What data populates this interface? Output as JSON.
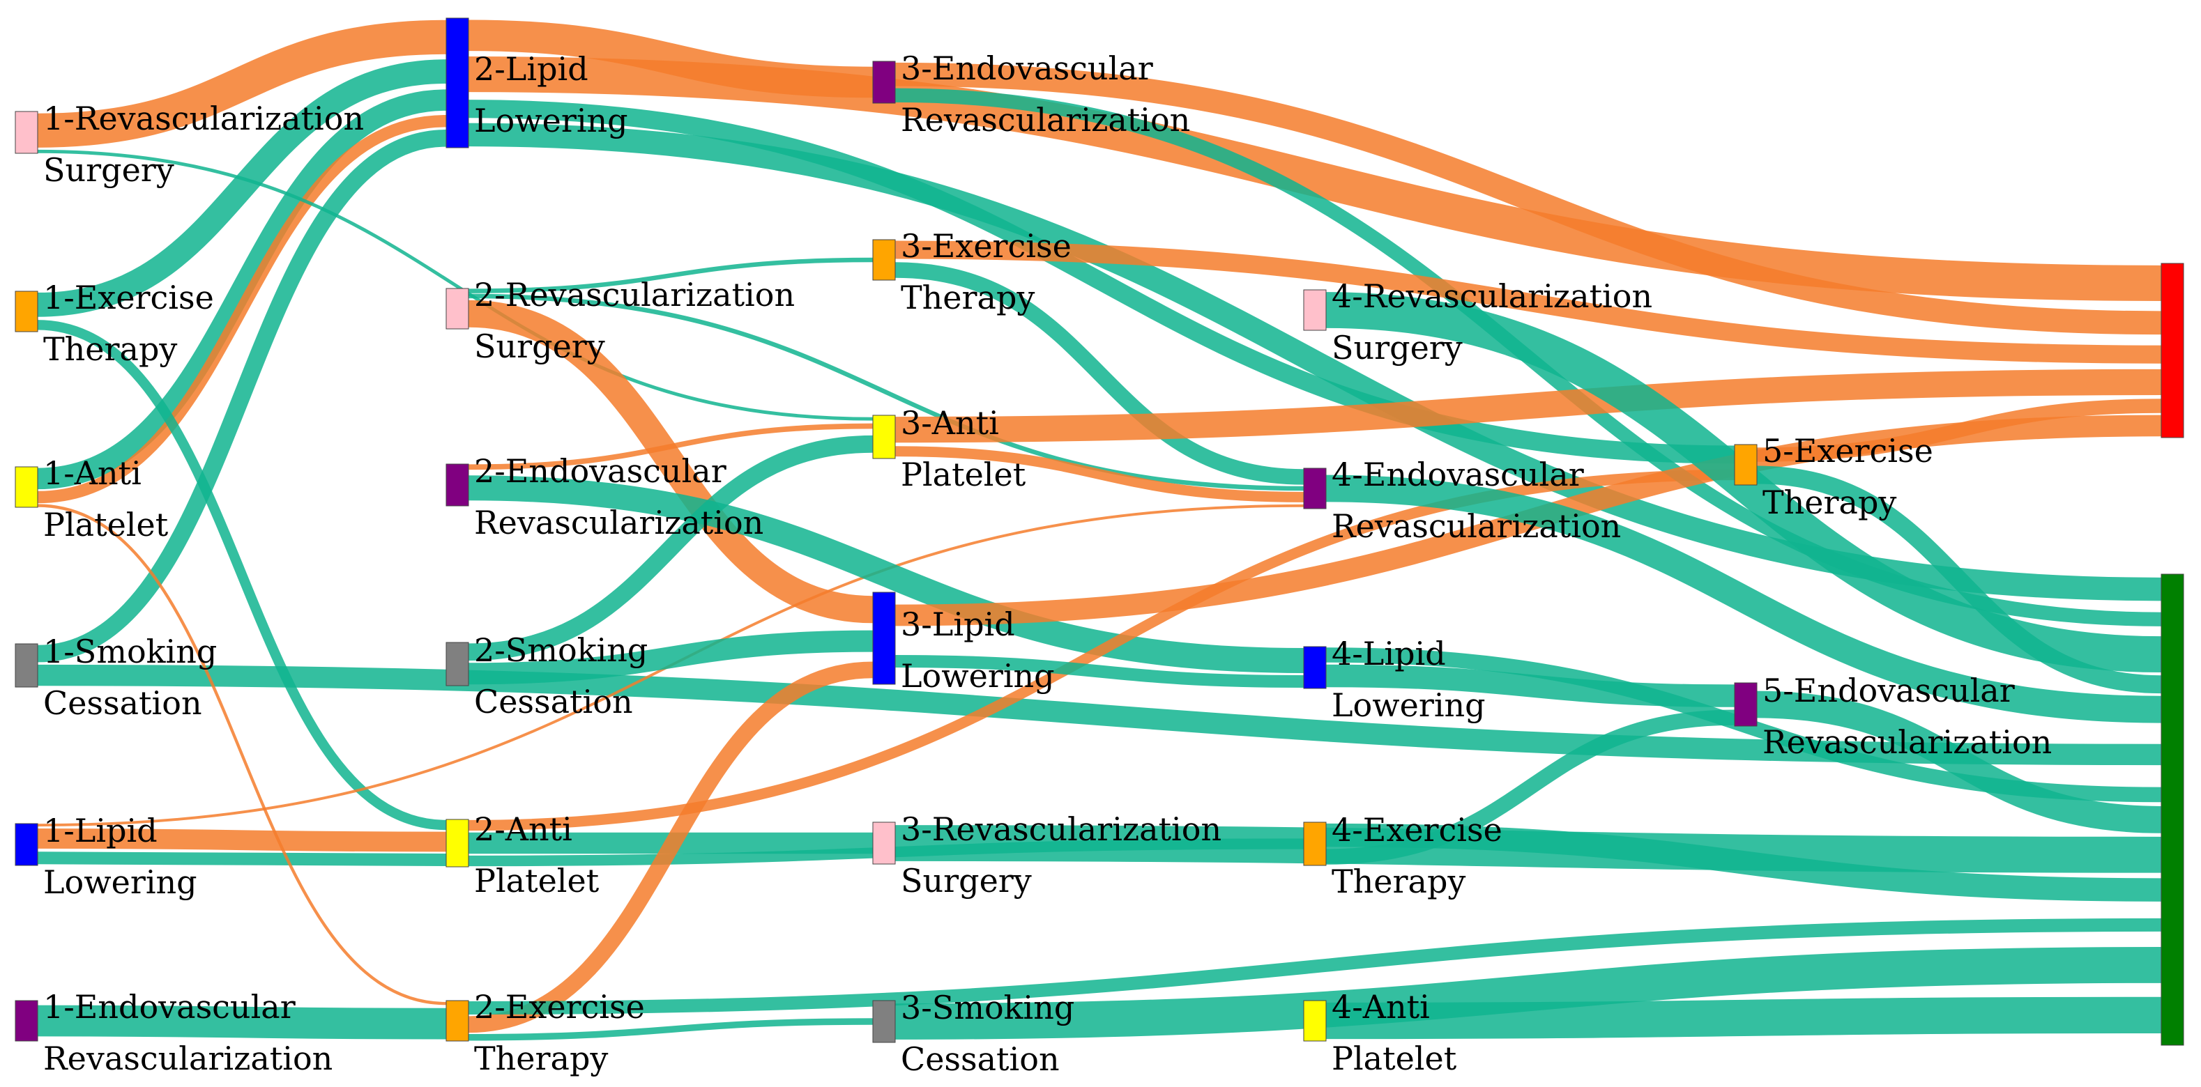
{
  "diagram": {
    "type": "sankey",
    "colors": {
      "Revascularization Surgery": "#ffc0cb",
      "Exercise Therapy": "#ffa500",
      "Anti Platelet": "#ffff00",
      "Smoking Cessation": "#808080",
      "Lipid Lowering": "#0000ff",
      "Endovascular Revascularization": "#800080",
      "outcome_red": "#ff0000",
      "outcome_green": "#008000",
      "link_orange": "#f47c2c",
      "link_teal": "#11b48f"
    },
    "nodes": [
      {
        "id": "s1_rs",
        "stage": 1,
        "line1": "1-Revascularization",
        "line2": "Surgery",
        "color": "Revascularization Surgery"
      },
      {
        "id": "s1_et",
        "stage": 1,
        "line1": "1-Exercise",
        "line2": "Therapy",
        "color": "Exercise Therapy"
      },
      {
        "id": "s1_ap",
        "stage": 1,
        "line1": "1-Anti",
        "line2": "Platelet",
        "color": "Anti Platelet"
      },
      {
        "id": "s1_sc",
        "stage": 1,
        "line1": "1-Smoking",
        "line2": "Cessation",
        "color": "Smoking Cessation"
      },
      {
        "id": "s1_ll",
        "stage": 1,
        "line1": "1-Lipid",
        "line2": "Lowering",
        "color": "Lipid Lowering"
      },
      {
        "id": "s1_ev",
        "stage": 1,
        "line1": "1-Endovascular",
        "line2": "Revascularization",
        "color": "Endovascular Revascularization"
      },
      {
        "id": "s2_ll",
        "stage": 2,
        "line1": "2-Lipid",
        "line2": "Lowering",
        "color": "Lipid Lowering"
      },
      {
        "id": "s2_rs",
        "stage": 2,
        "line1": "2-Revascularization",
        "line2": "Surgery",
        "color": "Revascularization Surgery"
      },
      {
        "id": "s2_ev",
        "stage": 2,
        "line1": "2-Endovascular",
        "line2": "Revascularization",
        "color": "Endovascular Revascularization"
      },
      {
        "id": "s2_sc",
        "stage": 2,
        "line1": "2-Smoking",
        "line2": "Cessation",
        "color": "Smoking Cessation"
      },
      {
        "id": "s2_ap",
        "stage": 2,
        "line1": "2-Anti",
        "line2": "Platelet",
        "color": "Anti Platelet"
      },
      {
        "id": "s2_et",
        "stage": 2,
        "line1": "2-Exercise",
        "line2": "Therapy",
        "color": "Exercise Therapy"
      },
      {
        "id": "s3_ev",
        "stage": 3,
        "line1": "3-Endovascular",
        "line2": "Revascularization",
        "color": "Endovascular Revascularization"
      },
      {
        "id": "s3_et",
        "stage": 3,
        "line1": "3-Exercise",
        "line2": "Therapy",
        "color": "Exercise Therapy"
      },
      {
        "id": "s3_ap",
        "stage": 3,
        "line1": "3-Anti",
        "line2": "Platelet",
        "color": "Anti Platelet"
      },
      {
        "id": "s3_ll",
        "stage": 3,
        "line1": "3-Lipid",
        "line2": "Lowering",
        "color": "Lipid Lowering"
      },
      {
        "id": "s3_rs",
        "stage": 3,
        "line1": "3-Revascularization",
        "line2": "Surgery",
        "color": "Revascularization Surgery"
      },
      {
        "id": "s3_sc",
        "stage": 3,
        "line1": "3-Smoking",
        "line2": "Cessation",
        "color": "Smoking Cessation"
      },
      {
        "id": "s4_rs",
        "stage": 4,
        "line1": "4-Revascularization",
        "line2": "Surgery",
        "color": "Revascularization Surgery"
      },
      {
        "id": "s4_ev",
        "stage": 4,
        "line1": "4-Endovascular",
        "line2": "Revascularization",
        "color": "Endovascular Revascularization"
      },
      {
        "id": "s4_ll",
        "stage": 4,
        "line1": "4-Lipid",
        "line2": "Lowering",
        "color": "Lipid Lowering"
      },
      {
        "id": "s4_et",
        "stage": 4,
        "line1": "4-Exercise",
        "line2": "Therapy",
        "color": "Exercise Therapy"
      },
      {
        "id": "s4_ap",
        "stage": 4,
        "line1": "4-Anti",
        "line2": "Platelet",
        "color": "Anti Platelet"
      },
      {
        "id": "s5_et",
        "stage": 5,
        "line1": "5-Exercise",
        "line2": "Therapy",
        "color": "Exercise Therapy"
      },
      {
        "id": "s5_ev",
        "stage": 5,
        "line1": "5-Endovascular",
        "line2": "Revascularization",
        "color": "Endovascular Revascularization"
      },
      {
        "id": "out_red",
        "stage": 6,
        "line1": "",
        "line2": "",
        "color": "outcome_red"
      },
      {
        "id": "out_green",
        "stage": 6,
        "line1": "",
        "line2": "",
        "color": "outcome_green"
      }
    ],
    "links": [
      {
        "source": "s1_rs",
        "target": "s2_ll",
        "value": 10,
        "kind": "orange"
      },
      {
        "source": "s1_et",
        "target": "s2_ll",
        "value": 8,
        "kind": "teal"
      },
      {
        "source": "s1_ap",
        "target": "s2_ll",
        "value": 7,
        "kind": "teal"
      },
      {
        "source": "s1_ap",
        "target": "s2_ll",
        "value": 4,
        "kind": "orange"
      },
      {
        "source": "s1_sc",
        "target": "s2_ll",
        "value": 5,
        "kind": "teal"
      },
      {
        "source": "s1_sc",
        "target": "out_green",
        "value": 6,
        "kind": "teal"
      },
      {
        "source": "s1_ll",
        "target": "s2_ap",
        "value": 8,
        "kind": "orange"
      },
      {
        "source": "s1_ll",
        "target": "s2_ap",
        "value": 5,
        "kind": "teal"
      },
      {
        "source": "s1_ev",
        "target": "s2_et",
        "value": 6,
        "kind": "teal"
      },
      {
        "source": "s1_et",
        "target": "s2_ap",
        "value": 4,
        "kind": "teal"
      },
      {
        "source": "s1_ap",
        "target": "s2_et",
        "value": 1,
        "kind": "orange"
      },
      {
        "source": "s1_rs",
        "target": "s3_ap",
        "value": 1,
        "kind": "teal"
      },
      {
        "source": "s1_ll",
        "target": "s4_ev",
        "value": 1,
        "kind": "orange"
      },
      {
        "source": "s2_ll",
        "target": "s3_ev",
        "value": 4,
        "kind": "orange"
      },
      {
        "source": "s2_ll",
        "target": "out_red",
        "value": 5,
        "kind": "orange"
      },
      {
        "source": "s2_ll",
        "target": "out_green",
        "value": 3,
        "kind": "teal"
      },
      {
        "source": "s2_ll",
        "target": "s5_et",
        "value": 3,
        "kind": "teal"
      },
      {
        "source": "s2_rs",
        "target": "s3_ll",
        "value": 6,
        "kind": "orange"
      },
      {
        "source": "s2_rs",
        "target": "s3_et",
        "value": 1,
        "kind": "teal"
      },
      {
        "source": "s2_rs",
        "target": "s4_ev",
        "value": 1,
        "kind": "teal"
      },
      {
        "source": "s2_ev",
        "target": "s4_ll",
        "value": 6,
        "kind": "teal"
      },
      {
        "source": "s2_ev",
        "target": "s3_ap",
        "value": 1,
        "kind": "orange"
      },
      {
        "source": "s2_sc",
        "target": "s3_ll",
        "value": 5,
        "kind": "teal"
      },
      {
        "source": "s2_sc",
        "target": "s3_ap",
        "value": 4,
        "kind": "teal"
      },
      {
        "source": "s2_ap",
        "target": "s3_rs",
        "value": 6,
        "kind": "teal"
      },
      {
        "source": "s2_ap",
        "target": "s5_et",
        "value": 3,
        "kind": "orange"
      },
      {
        "source": "s2_ap",
        "target": "s4_et",
        "value": 3,
        "kind": "teal"
      },
      {
        "source": "s2_et",
        "target": "s3_ll",
        "value": 5,
        "kind": "orange"
      },
      {
        "source": "s2_et",
        "target": "s3_sc",
        "value": 2,
        "kind": "teal"
      },
      {
        "source": "s2_et",
        "target": "out_green",
        "value": 4,
        "kind": "teal"
      },
      {
        "source": "s3_ev",
        "target": "out_red",
        "value": 5,
        "kind": "orange"
      },
      {
        "source": "s3_ev",
        "target": "out_green",
        "value": 3,
        "kind": "teal"
      },
      {
        "source": "s3_et",
        "target": "out_red",
        "value": 3,
        "kind": "orange"
      },
      {
        "source": "s3_et",
        "target": "s4_ev",
        "value": 3,
        "kind": "teal"
      },
      {
        "source": "s3_ap",
        "target": "out_red",
        "value": 4,
        "kind": "orange"
      },
      {
        "source": "s3_ap",
        "target": "s4_ev",
        "value": 2,
        "kind": "orange"
      },
      {
        "source": "s3_ll",
        "target": "out_red",
        "value": 3,
        "kind": "orange"
      },
      {
        "source": "s3_ll",
        "target": "s4_ll",
        "value": 3,
        "kind": "teal"
      },
      {
        "source": "s3_rs",
        "target": "out_green",
        "value": 4,
        "kind": "teal"
      },
      {
        "source": "s3_sc",
        "target": "out_green",
        "value": 4,
        "kind": "teal"
      },
      {
        "source": "s4_rs",
        "target": "out_green",
        "value": 4,
        "kind": "teal"
      },
      {
        "source": "s4_ev",
        "target": "out_green",
        "value": 3,
        "kind": "teal"
      },
      {
        "source": "s4_ll",
        "target": "s5_ev",
        "value": 3,
        "kind": "teal"
      },
      {
        "source": "s4_ll",
        "target": "out_green",
        "value": 2,
        "kind": "teal"
      },
      {
        "source": "s4_et",
        "target": "out_green",
        "value": 3,
        "kind": "teal"
      },
      {
        "source": "s4_et",
        "target": "s5_ev",
        "value": 2,
        "kind": "teal"
      },
      {
        "source": "s4_ap",
        "target": "out_green",
        "value": 6,
        "kind": "teal"
      },
      {
        "source": "s5_et",
        "target": "out_red",
        "value": 2,
        "kind": "orange"
      },
      {
        "source": "s5_et",
        "target": "out_green",
        "value": 2,
        "kind": "teal"
      },
      {
        "source": "s5_ev",
        "target": "out_green",
        "value": 3,
        "kind": "teal"
      }
    ]
  }
}
